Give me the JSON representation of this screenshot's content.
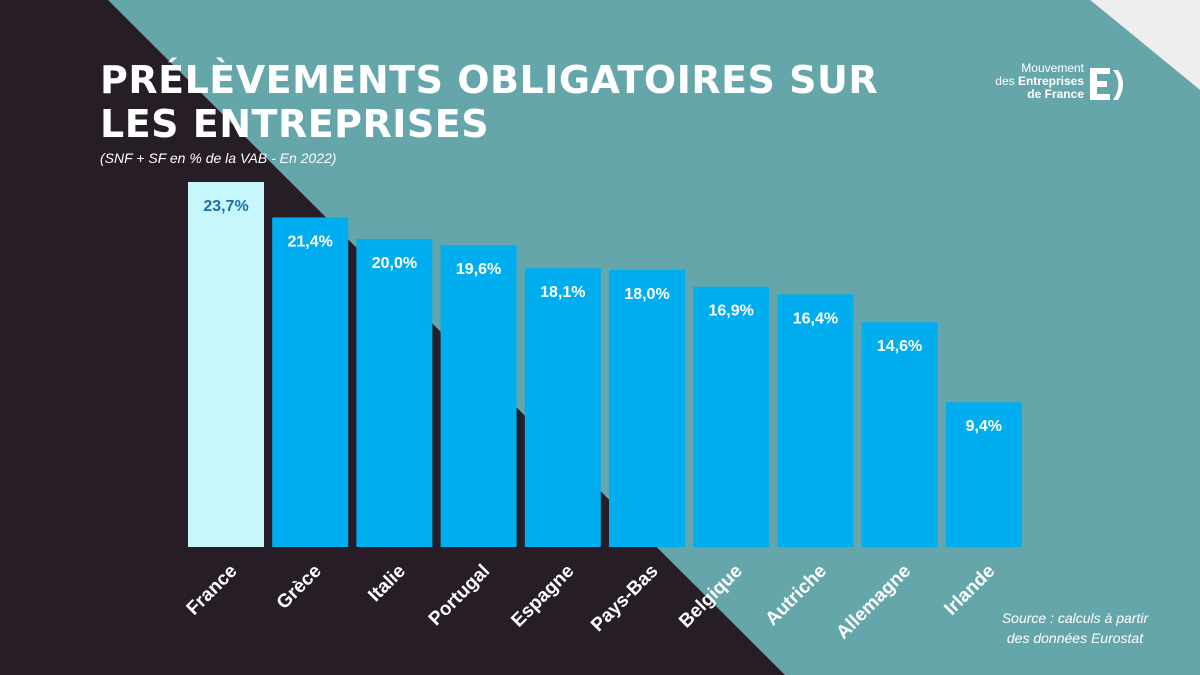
{
  "header": {
    "title": "PRÉLÈVEMENTS OBLIGATOIRES SUR LES ENTREPRISES",
    "subtitle": "(SNF + SF en % de la VAB - En 2022)"
  },
  "logo": {
    "line1": "Mouvement",
    "line2_prefix": "des ",
    "line2_bold": "Entreprises",
    "line3": "de France",
    "icon": "medef-e-icon"
  },
  "source": {
    "line1": "Source : calculs à partir",
    "line2": "des données Eurostat"
  },
  "colors": {
    "dark_bg": "#261d27",
    "teal_bg": "#65a6aa",
    "bar": "#00aeef",
    "bar_highlight": "#c8f7fb",
    "label_highlight": "#1d6fa5",
    "white": "#ffffff"
  },
  "chart_data": {
    "type": "bar",
    "title": "PRÉLÈVEMENTS OBLIGATOIRES SUR LES ENTREPRISES",
    "subtitle": "(SNF + SF en % de la VAB - En 2022)",
    "categories": [
      "France",
      "Grèce",
      "Italie",
      "Portugal",
      "Espagne",
      "Pays-Bas",
      "Belgique",
      "Autriche",
      "Allemagne",
      "Irlande"
    ],
    "values": [
      23.7,
      21.4,
      20.0,
      19.6,
      18.1,
      18.0,
      16.9,
      16.4,
      14.6,
      9.4
    ],
    "data_labels": [
      "23,7%",
      "21,4%",
      "20,0%",
      "19,6%",
      "18,1%",
      "18,0%",
      "16,9%",
      "16,4%",
      "14,6%",
      "9,4%"
    ],
    "highlight": "France",
    "xlabel": "",
    "ylabel": "",
    "ylim": [
      0,
      23.7
    ],
    "grid": false,
    "legend": "none"
  }
}
